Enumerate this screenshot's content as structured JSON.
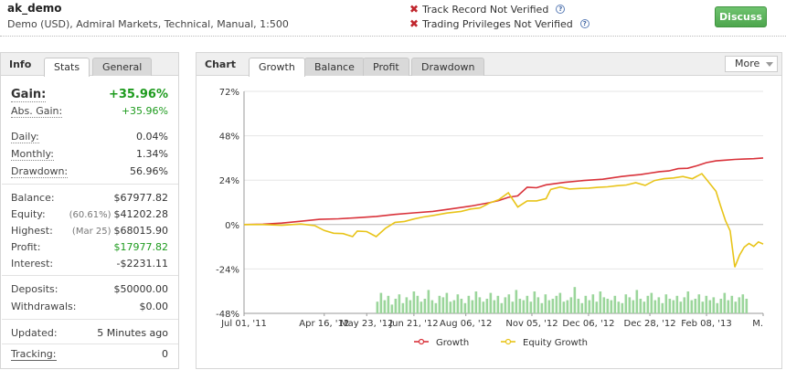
{
  "header": {
    "account_name": "ak_demo",
    "account_info": "Demo (USD), Admiral Markets, Technical, Manual, 1:500",
    "track_record": "Track Record Not Verified",
    "trading_privileges": "Trading Privileges Not Verified",
    "discuss_label": "Discuss"
  },
  "info_panel": {
    "title": "Info",
    "tabs": [
      "Stats",
      "General"
    ],
    "gain_label": "Gain:",
    "gain_value": "+35.96%",
    "abs_gain_label": "Abs. Gain:",
    "abs_gain_value": "+35.96%",
    "daily_label": "Daily:",
    "daily_value": "0.04%",
    "monthly_label": "Monthly:",
    "monthly_value": "1.34%",
    "drawdown_label": "Drawdown:",
    "drawdown_value": "56.96%",
    "balance_label": "Balance:",
    "balance_value": "$67977.82",
    "equity_label": "Equity:",
    "equity_note": "(60.61%)",
    "equity_value": "$41202.28",
    "highest_label": "Highest:",
    "highest_note": "(Mar 25)",
    "highest_value": "$68015.90",
    "profit_label": "Profit:",
    "profit_value": "$17977.82",
    "interest_label": "Interest:",
    "interest_value": "-$2231.11",
    "deposits_label": "Deposits:",
    "deposits_value": "$50000.00",
    "withdrawals_label": "Withdrawals:",
    "withdrawals_value": "$0.00",
    "updated_label": "Updated:",
    "updated_value": "5 Minutes ago",
    "tracking_label": "Tracking:",
    "tracking_value": "0"
  },
  "chart_panel": {
    "title": "Chart",
    "tabs": [
      "Growth",
      "Balance",
      "Profit",
      "Drawdown"
    ],
    "more_label": "More"
  },
  "chart_data": {
    "type": "line",
    "y_ticks": [
      "72%",
      "48%",
      "24%",
      "0%",
      "-24%",
      "-48%"
    ],
    "ylim": [
      -48,
      72
    ],
    "x_ticks": [
      "Jul 01, '11",
      "Apr 16, '12",
      "May 23, '12",
      "Jun 21, '12",
      "Aug 06, '12",
      "Nov 05, '12",
      "Dec 06, '12",
      "Dec 28, '12",
      "Feb 08, '13",
      "M."
    ],
    "series": [
      {
        "name": "Growth",
        "color": "#d9323a",
        "points": [
          [
            0,
            0
          ],
          [
            4,
            0.2
          ],
          [
            8,
            0.8
          ],
          [
            12,
            1.8
          ],
          [
            16,
            2.8
          ],
          [
            20,
            3.1
          ],
          [
            24,
            3.7
          ],
          [
            28,
            4.4
          ],
          [
            32,
            5.5
          ],
          [
            36,
            6.3
          ],
          [
            40,
            7.1
          ],
          [
            44,
            8.5
          ],
          [
            48,
            10
          ],
          [
            52,
            11.8
          ],
          [
            54,
            13
          ],
          [
            56,
            14.7
          ],
          [
            58,
            15.5
          ],
          [
            60,
            20.2
          ],
          [
            62,
            19.9
          ],
          [
            64,
            21.5
          ],
          [
            68,
            22.8
          ],
          [
            72,
            23.8
          ],
          [
            76,
            24.5
          ],
          [
            80,
            26
          ],
          [
            82,
            26.5
          ],
          [
            84,
            27
          ],
          [
            86,
            27.8
          ],
          [
            88,
            28.6
          ],
          [
            90,
            29
          ],
          [
            92,
            30.2
          ],
          [
            94,
            30.4
          ],
          [
            96,
            31.8
          ],
          [
            98,
            33.5
          ],
          [
            100,
            34.4
          ],
          [
            102,
            34.8
          ],
          [
            104,
            35.2
          ],
          [
            106,
            35.4
          ],
          [
            108,
            35.6
          ],
          [
            110,
            36
          ]
        ]
      },
      {
        "name": "Equity Growth",
        "color": "#e8c419",
        "points": [
          [
            0,
            0
          ],
          [
            4,
            0
          ],
          [
            8,
            -0.4
          ],
          [
            12,
            0.3
          ],
          [
            15,
            -0.6
          ],
          [
            17,
            -3.2
          ],
          [
            19,
            -4.7
          ],
          [
            21,
            -4.9
          ],
          [
            23,
            -6.5
          ],
          [
            24,
            -3.5
          ],
          [
            26,
            -3.8
          ],
          [
            28,
            -6.5
          ],
          [
            30,
            -2
          ],
          [
            32,
            1.2
          ],
          [
            34,
            1.7
          ],
          [
            36,
            3
          ],
          [
            38,
            4.1
          ],
          [
            40,
            4.9
          ],
          [
            43,
            6.2
          ],
          [
            46,
            7.1
          ],
          [
            48,
            8.4
          ],
          [
            50,
            9
          ],
          [
            52,
            11.6
          ],
          [
            54,
            13.5
          ],
          [
            56,
            17.2
          ],
          [
            58,
            9.5
          ],
          [
            60,
            12.8
          ],
          [
            62,
            12.8
          ],
          [
            64,
            14
          ],
          [
            65,
            19
          ],
          [
            67,
            20.3
          ],
          [
            69,
            19.2
          ],
          [
            71,
            19.5
          ],
          [
            73,
            19.7
          ],
          [
            75,
            20.1
          ],
          [
            77,
            20.4
          ],
          [
            79,
            21
          ],
          [
            81,
            21.4
          ],
          [
            83,
            22.6
          ],
          [
            85,
            21.2
          ],
          [
            87,
            23.8
          ],
          [
            89,
            24.8
          ],
          [
            91,
            25.2
          ],
          [
            93,
            26
          ],
          [
            95,
            24.8
          ],
          [
            97,
            27.5
          ],
          [
            98,
            24.4
          ],
          [
            100,
            18
          ],
          [
            101,
            10
          ],
          [
            102,
            2.2
          ],
          [
            103,
            -3.4
          ],
          [
            104,
            -23
          ],
          [
            105,
            -16.5
          ],
          [
            106,
            -12.2
          ],
          [
            107,
            -10.2
          ],
          [
            108,
            -11.8
          ],
          [
            109,
            -9.4
          ],
          [
            110,
            -10.5
          ]
        ]
      }
    ],
    "legend": [
      "Growth",
      "Equity Growth"
    ],
    "secondary_bars": "daily trades volume bars"
  }
}
